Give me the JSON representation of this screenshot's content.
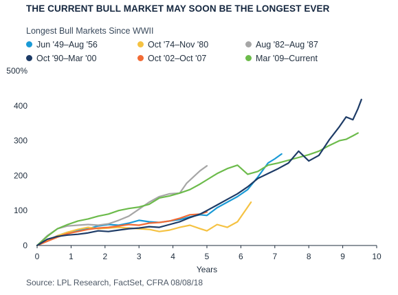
{
  "header": {
    "title": "THE CURRENT BULL MARKET MAY SOON BE THE LONGEST EVER",
    "subtitle": "Longest Bull Markets Since WWII"
  },
  "source": "Source: LPL Research, FactSet, CFRA   08/08/18",
  "chart_data": {
    "type": "line",
    "title": "THE CURRENT BULL MARKET MAY SOON BE THE LONGEST EVER",
    "subtitle": "Longest Bull Markets Since WWII",
    "xlabel": "Years",
    "ylabel": "",
    "xlim": [
      0,
      10
    ],
    "ylim": [
      0,
      500
    ],
    "x_ticks": [
      "0",
      "1",
      "2",
      "3",
      "4",
      "5",
      "6",
      "7",
      "8",
      "9",
      "10"
    ],
    "y_ticks": [
      "0",
      "100",
      "200",
      "300",
      "400",
      "500%"
    ],
    "grid": false,
    "legend_position": "top",
    "series": [
      {
        "name": "Jun '49–Aug '56",
        "color": "#1a9ad6",
        "points": [
          [
            0,
            0
          ],
          [
            0.3,
            14
          ],
          [
            0.6,
            28
          ],
          [
            0.9,
            38
          ],
          [
            1.2,
            44
          ],
          [
            1.5,
            48
          ],
          [
            1.8,
            56
          ],
          [
            2.1,
            60
          ],
          [
            2.4,
            58
          ],
          [
            2.7,
            64
          ],
          [
            3.0,
            72
          ],
          [
            3.3,
            68
          ],
          [
            3.6,
            66
          ],
          [
            3.9,
            70
          ],
          [
            4.2,
            74
          ],
          [
            4.5,
            82
          ],
          [
            4.8,
            88
          ],
          [
            5.0,
            86
          ],
          [
            5.3,
            108
          ],
          [
            5.6,
            124
          ],
          [
            5.9,
            140
          ],
          [
            6.2,
            160
          ],
          [
            6.5,
            196
          ],
          [
            6.8,
            236
          ],
          [
            7.0,
            248
          ],
          [
            7.2,
            262
          ]
        ]
      },
      {
        "name": "Oct '74–Nov '80",
        "color": "#f5c242",
        "points": [
          [
            0,
            0
          ],
          [
            0.3,
            14
          ],
          [
            0.6,
            28
          ],
          [
            0.9,
            38
          ],
          [
            1.2,
            46
          ],
          [
            1.5,
            52
          ],
          [
            1.8,
            48
          ],
          [
            2.1,
            50
          ],
          [
            2.4,
            52
          ],
          [
            2.7,
            50
          ],
          [
            3.0,
            48
          ],
          [
            3.3,
            46
          ],
          [
            3.6,
            40
          ],
          [
            3.9,
            44
          ],
          [
            4.2,
            52
          ],
          [
            4.5,
            58
          ],
          [
            4.8,
            48
          ],
          [
            5.0,
            42
          ],
          [
            5.3,
            60
          ],
          [
            5.6,
            52
          ],
          [
            5.9,
            68
          ],
          [
            6.2,
            110
          ],
          [
            6.3,
            124
          ]
        ]
      },
      {
        "name": "Aug '82–Aug '87",
        "color": "#a6a6a6",
        "points": [
          [
            0,
            0
          ],
          [
            0.3,
            28
          ],
          [
            0.6,
            48
          ],
          [
            0.9,
            56
          ],
          [
            1.2,
            58
          ],
          [
            1.5,
            60
          ],
          [
            1.8,
            58
          ],
          [
            2.1,
            62
          ],
          [
            2.4,
            72
          ],
          [
            2.7,
            84
          ],
          [
            3.0,
            104
          ],
          [
            3.3,
            124
          ],
          [
            3.6,
            140
          ],
          [
            3.9,
            148
          ],
          [
            4.2,
            150
          ],
          [
            4.4,
            178
          ],
          [
            4.6,
            196
          ],
          [
            4.8,
            214
          ],
          [
            5.0,
            228
          ]
        ]
      },
      {
        "name": "Oct '90–Mar '00",
        "color": "#1d3b66",
        "points": [
          [
            0,
            0
          ],
          [
            0.3,
            18
          ],
          [
            0.6,
            26
          ],
          [
            0.9,
            30
          ],
          [
            1.2,
            32
          ],
          [
            1.5,
            36
          ],
          [
            1.8,
            42
          ],
          [
            2.1,
            40
          ],
          [
            2.4,
            44
          ],
          [
            2.7,
            48
          ],
          [
            3.0,
            50
          ],
          [
            3.3,
            54
          ],
          [
            3.6,
            52
          ],
          [
            3.9,
            60
          ],
          [
            4.2,
            68
          ],
          [
            4.5,
            80
          ],
          [
            4.8,
            90
          ],
          [
            5.0,
            100
          ],
          [
            5.3,
            116
          ],
          [
            5.6,
            132
          ],
          [
            5.9,
            148
          ],
          [
            6.2,
            168
          ],
          [
            6.5,
            192
          ],
          [
            6.8,
            206
          ],
          [
            7.1,
            220
          ],
          [
            7.4,
            236
          ],
          [
            7.7,
            270
          ],
          [
            8.0,
            242
          ],
          [
            8.3,
            258
          ],
          [
            8.6,
            302
          ],
          [
            8.9,
            340
          ],
          [
            9.1,
            368
          ],
          [
            9.3,
            360
          ],
          [
            9.45,
            392
          ],
          [
            9.55,
            418
          ]
        ]
      },
      {
        "name": "Oct '02–Oct '07",
        "color": "#f26b35",
        "points": [
          [
            0,
            0
          ],
          [
            0.3,
            12
          ],
          [
            0.6,
            24
          ],
          [
            0.9,
            34
          ],
          [
            1.2,
            40
          ],
          [
            1.5,
            46
          ],
          [
            1.8,
            50
          ],
          [
            2.1,
            52
          ],
          [
            2.4,
            56
          ],
          [
            2.7,
            60
          ],
          [
            3.0,
            58
          ],
          [
            3.3,
            64
          ],
          [
            3.6,
            66
          ],
          [
            3.9,
            70
          ],
          [
            4.2,
            78
          ],
          [
            4.5,
            88
          ],
          [
            4.8,
            90
          ],
          [
            5.0,
            96
          ]
        ]
      },
      {
        "name": "Mar '09–Current",
        "color": "#6cbb4b",
        "points": [
          [
            0,
            0
          ],
          [
            0.3,
            26
          ],
          [
            0.6,
            48
          ],
          [
            0.9,
            60
          ],
          [
            1.2,
            70
          ],
          [
            1.5,
            76
          ],
          [
            1.8,
            84
          ],
          [
            2.1,
            90
          ],
          [
            2.4,
            100
          ],
          [
            2.7,
            106
          ],
          [
            3.0,
            110
          ],
          [
            3.3,
            118
          ],
          [
            3.6,
            136
          ],
          [
            3.9,
            142
          ],
          [
            4.2,
            150
          ],
          [
            4.5,
            160
          ],
          [
            4.8,
            176
          ],
          [
            5.0,
            188
          ],
          [
            5.3,
            206
          ],
          [
            5.6,
            220
          ],
          [
            5.9,
            230
          ],
          [
            6.2,
            204
          ],
          [
            6.5,
            212
          ],
          [
            6.8,
            230
          ],
          [
            7.1,
            236
          ],
          [
            7.4,
            244
          ],
          [
            7.7,
            252
          ],
          [
            8.0,
            260
          ],
          [
            8.3,
            270
          ],
          [
            8.6,
            286
          ],
          [
            8.9,
            300
          ],
          [
            9.1,
            304
          ],
          [
            9.3,
            314
          ],
          [
            9.45,
            322
          ]
        ]
      }
    ]
  }
}
